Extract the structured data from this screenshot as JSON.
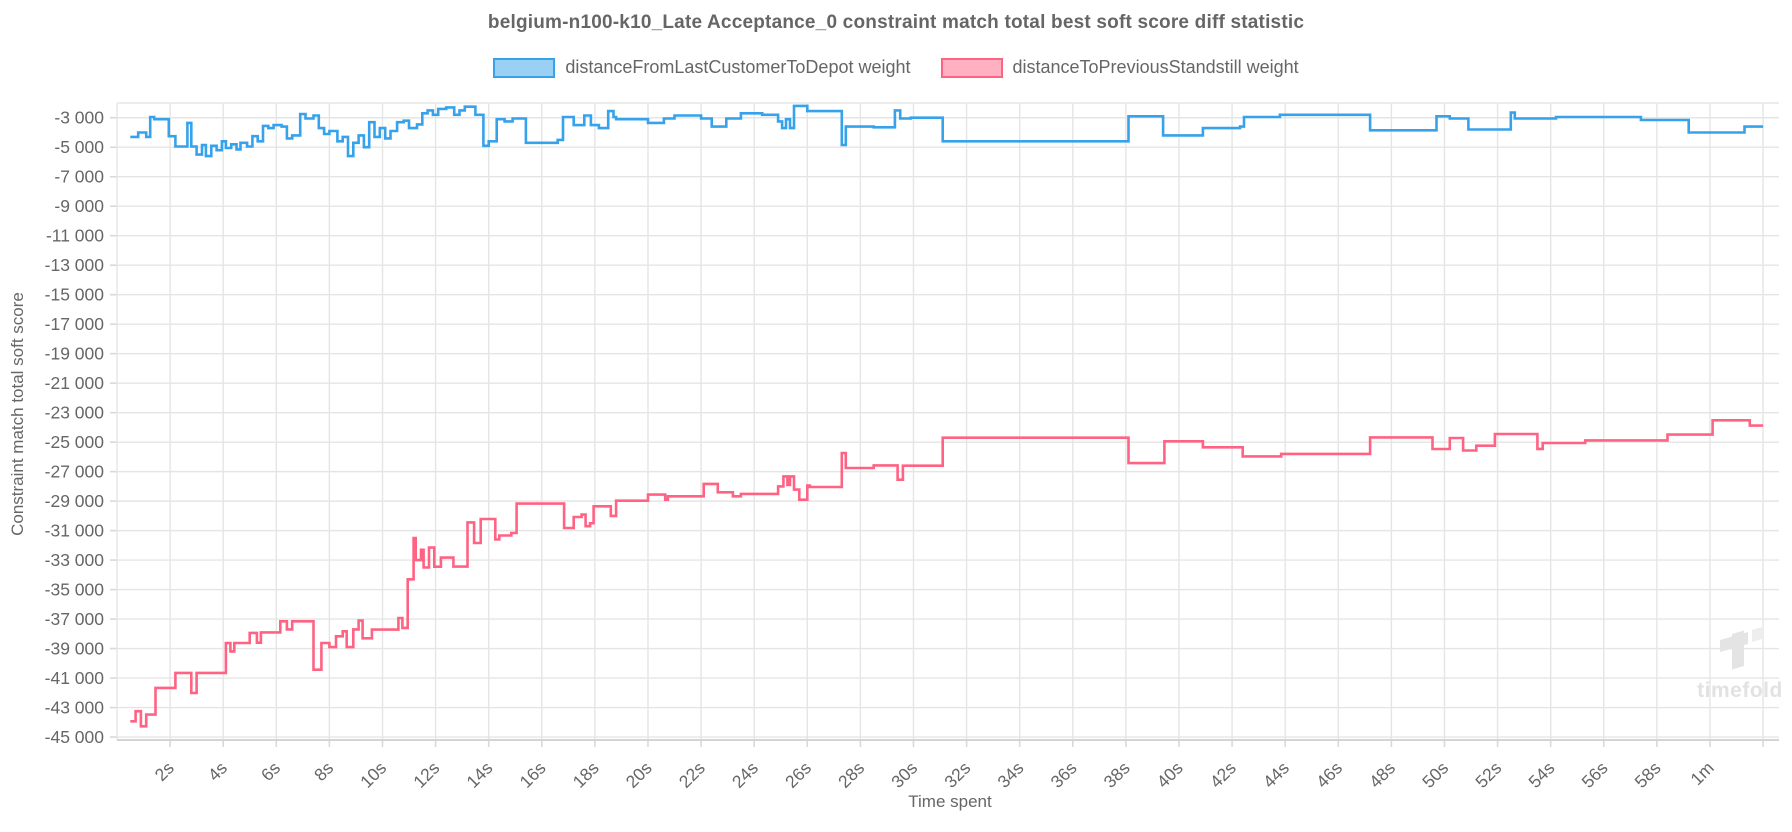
{
  "title": "belgium-n100-k10_Late Acceptance_0 constraint match total best soft score diff statistic",
  "watermark": {
    "text": "timefold"
  },
  "legend": [
    {
      "label": "distanceFromLastCustomerToDepot weight",
      "stroke": "#36A2EB",
      "fill": "#9BD0F5"
    },
    {
      "label": "distanceToPreviousStandstill weight",
      "stroke": "#FF6384",
      "fill": "#FFB1C1"
    }
  ],
  "chart_data": {
    "type": "line",
    "step": true,
    "title": "belgium-n100-k10_Late Acceptance_0 constraint match total best soft score diff statistic",
    "xlabel": "Time spent",
    "ylabel": "Constraint match total soft score",
    "xlim": [
      0,
      62.6
    ],
    "ylim": [
      -45200,
      -2000
    ],
    "grid": true,
    "legend_position": "top",
    "x_ticks": [
      {
        "t": 2,
        "label": "2s"
      },
      {
        "t": 4,
        "label": "4s"
      },
      {
        "t": 6,
        "label": "6s"
      },
      {
        "t": 8,
        "label": "8s"
      },
      {
        "t": 10,
        "label": "10s"
      },
      {
        "t": 12,
        "label": "12s"
      },
      {
        "t": 14,
        "label": "14s"
      },
      {
        "t": 16,
        "label": "16s"
      },
      {
        "t": 18,
        "label": "18s"
      },
      {
        "t": 20,
        "label": "20s"
      },
      {
        "t": 22,
        "label": "22s"
      },
      {
        "t": 24,
        "label": "24s"
      },
      {
        "t": 26,
        "label": "26s"
      },
      {
        "t": 28,
        "label": "28s"
      },
      {
        "t": 30,
        "label": "30s"
      },
      {
        "t": 32,
        "label": "32s"
      },
      {
        "t": 34,
        "label": "34s"
      },
      {
        "t": 36,
        "label": "36s"
      },
      {
        "t": 38,
        "label": "38s"
      },
      {
        "t": 40,
        "label": "40s"
      },
      {
        "t": 42,
        "label": "42s"
      },
      {
        "t": 44,
        "label": "44s"
      },
      {
        "t": 46,
        "label": "46s"
      },
      {
        "t": 48,
        "label": "48s"
      },
      {
        "t": 50,
        "label": "50s"
      },
      {
        "t": 52,
        "label": "52s"
      },
      {
        "t": 54,
        "label": "54s"
      },
      {
        "t": 56,
        "label": "56s"
      },
      {
        "t": 58,
        "label": "58s"
      },
      {
        "t": 60,
        "label": "1m"
      }
    ],
    "x_grid_extra": [
      62
    ],
    "y_ticks": [
      {
        "value": -3000,
        "label": "-3 000"
      },
      {
        "value": -5000,
        "label": "-5 000"
      },
      {
        "value": -7000,
        "label": "-7 000"
      },
      {
        "value": -9000,
        "label": "-9 000"
      },
      {
        "value": -11000,
        "label": "-11 000"
      },
      {
        "value": -13000,
        "label": "-13 000"
      },
      {
        "value": -15000,
        "label": "-15 000"
      },
      {
        "value": -17000,
        "label": "-17 000"
      },
      {
        "value": -19000,
        "label": "-19 000"
      },
      {
        "value": -21000,
        "label": "-21 000"
      },
      {
        "value": -23000,
        "label": "-23 000"
      },
      {
        "value": -25000,
        "label": "-25 000"
      },
      {
        "value": -27000,
        "label": "-27 000"
      },
      {
        "value": -29000,
        "label": "-29 000"
      },
      {
        "value": -31000,
        "label": "-31 000"
      },
      {
        "value": -33000,
        "label": "-33 000"
      },
      {
        "value": -35000,
        "label": "-35 000"
      },
      {
        "value": -37000,
        "label": "-37 000"
      },
      {
        "value": -39000,
        "label": "-39 000"
      },
      {
        "value": -41000,
        "label": "-41 000"
      },
      {
        "value": -43000,
        "label": "-43 000"
      },
      {
        "value": -45000,
        "label": "-45 000"
      }
    ],
    "series": [
      {
        "name": "distanceFromLastCustomerToDepot weight",
        "color": "#36A2EB",
        "points": [
          [
            0.5,
            -4300
          ],
          [
            0.8,
            -4000
          ],
          [
            1.1,
            -4300
          ],
          [
            1.25,
            -2950
          ],
          [
            1.4,
            -3100
          ],
          [
            1.95,
            -4250
          ],
          [
            2.2,
            -4950
          ],
          [
            2.65,
            -3350
          ],
          [
            2.8,
            -4950
          ],
          [
            3.0,
            -5500
          ],
          [
            3.2,
            -4850
          ],
          [
            3.35,
            -5600
          ],
          [
            3.55,
            -4900
          ],
          [
            3.75,
            -5200
          ],
          [
            3.95,
            -4600
          ],
          [
            4.1,
            -5050
          ],
          [
            4.3,
            -4800
          ],
          [
            4.5,
            -5150
          ],
          [
            4.65,
            -4700
          ],
          [
            4.9,
            -4950
          ],
          [
            5.1,
            -4250
          ],
          [
            5.3,
            -4600
          ],
          [
            5.5,
            -3550
          ],
          [
            5.7,
            -3700
          ],
          [
            5.9,
            -3500
          ],
          [
            6.2,
            -3600
          ],
          [
            6.4,
            -4400
          ],
          [
            6.6,
            -4200
          ],
          [
            6.9,
            -2750
          ],
          [
            7.1,
            -3050
          ],
          [
            7.4,
            -2850
          ],
          [
            7.6,
            -3700
          ],
          [
            7.8,
            -4100
          ],
          [
            8.0,
            -3900
          ],
          [
            8.3,
            -4600
          ],
          [
            8.5,
            -4300
          ],
          [
            8.7,
            -5600
          ],
          [
            8.9,
            -4700
          ],
          [
            9.1,
            -4200
          ],
          [
            9.3,
            -5000
          ],
          [
            9.5,
            -3300
          ],
          [
            9.7,
            -4300
          ],
          [
            9.9,
            -3700
          ],
          [
            10.1,
            -4400
          ],
          [
            10.3,
            -3900
          ],
          [
            10.55,
            -3300
          ],
          [
            10.8,
            -3200
          ],
          [
            11.0,
            -3700
          ],
          [
            11.3,
            -3450
          ],
          [
            11.5,
            -2700
          ],
          [
            11.7,
            -2500
          ],
          [
            11.9,
            -2800
          ],
          [
            12.1,
            -2400
          ],
          [
            12.4,
            -2300
          ],
          [
            12.7,
            -2800
          ],
          [
            12.9,
            -2500
          ],
          [
            13.1,
            -2250
          ],
          [
            13.5,
            -2800
          ],
          [
            13.8,
            -4900
          ],
          [
            14.0,
            -4600
          ],
          [
            14.3,
            -3100
          ],
          [
            14.6,
            -3250
          ],
          [
            14.9,
            -3050
          ],
          [
            15.4,
            -4700
          ],
          [
            16.6,
            -4500
          ],
          [
            16.8,
            -2950
          ],
          [
            17.2,
            -3500
          ],
          [
            17.6,
            -2850
          ],
          [
            17.85,
            -3500
          ],
          [
            18.15,
            -3700
          ],
          [
            18.5,
            -2550
          ],
          [
            18.7,
            -2950
          ],
          [
            18.8,
            -3100
          ],
          [
            20.0,
            -3350
          ],
          [
            20.6,
            -3050
          ],
          [
            21.0,
            -2850
          ],
          [
            22.0,
            -3050
          ],
          [
            22.4,
            -3600
          ],
          [
            22.95,
            -3050
          ],
          [
            23.5,
            -2700
          ],
          [
            24.3,
            -2800
          ],
          [
            24.9,
            -3250
          ],
          [
            25.05,
            -3700
          ],
          [
            25.2,
            -3100
          ],
          [
            25.35,
            -3700
          ],
          [
            25.5,
            -2200
          ],
          [
            26.0,
            -2550
          ],
          [
            27.3,
            -4850
          ],
          [
            27.45,
            -3600
          ],
          [
            28.5,
            -3650
          ],
          [
            29.3,
            -2500
          ],
          [
            29.5,
            -3050
          ],
          [
            29.9,
            -3000
          ],
          [
            31.1,
            -4600
          ],
          [
            38.1,
            -2900
          ],
          [
            39.4,
            -4200
          ],
          [
            40.9,
            -3700
          ],
          [
            42.3,
            -3600
          ],
          [
            42.45,
            -2950
          ],
          [
            43.8,
            -2800
          ],
          [
            47.2,
            -3850
          ],
          [
            49.7,
            -2900
          ],
          [
            50.2,
            -3050
          ],
          [
            50.9,
            -3800
          ],
          [
            52.5,
            -2650
          ],
          [
            52.65,
            -3050
          ],
          [
            54.2,
            -2950
          ],
          [
            57.4,
            -3150
          ],
          [
            59.2,
            -4000
          ],
          [
            61.3,
            -3600
          ],
          [
            62.0,
            -3600
          ]
        ]
      },
      {
        "name": "distanceToPreviousStandstill weight",
        "color": "#FF6384",
        "points": [
          [
            0.5,
            -43930
          ],
          [
            0.7,
            -43250
          ],
          [
            0.9,
            -44270
          ],
          [
            1.1,
            -43480
          ],
          [
            1.45,
            -41670
          ],
          [
            2.2,
            -40650
          ],
          [
            2.8,
            -42010
          ],
          [
            3.0,
            -40650
          ],
          [
            4.1,
            -38620
          ],
          [
            4.27,
            -39190
          ],
          [
            4.42,
            -38620
          ],
          [
            5.0,
            -37940
          ],
          [
            5.27,
            -38600
          ],
          [
            5.42,
            -37900
          ],
          [
            6.15,
            -37150
          ],
          [
            6.4,
            -37700
          ],
          [
            6.6,
            -37150
          ],
          [
            7.4,
            -40430
          ],
          [
            7.7,
            -38620
          ],
          [
            8.0,
            -38900
          ],
          [
            8.25,
            -38170
          ],
          [
            8.5,
            -37830
          ],
          [
            8.65,
            -38900
          ],
          [
            8.9,
            -37700
          ],
          [
            9.1,
            -37100
          ],
          [
            9.25,
            -38300
          ],
          [
            9.6,
            -37715
          ],
          [
            10.6,
            -36925
          ],
          [
            10.75,
            -37600
          ],
          [
            10.95,
            -34300
          ],
          [
            11.17,
            -31500
          ],
          [
            11.25,
            -33000
          ],
          [
            11.45,
            -32300
          ],
          [
            11.55,
            -33500
          ],
          [
            11.75,
            -32150
          ],
          [
            11.95,
            -33450
          ],
          [
            12.2,
            -32830
          ],
          [
            12.67,
            -33440
          ],
          [
            13.2,
            -30440
          ],
          [
            13.45,
            -31840
          ],
          [
            13.7,
            -30215
          ],
          [
            14.25,
            -31600
          ],
          [
            14.4,
            -31330
          ],
          [
            14.85,
            -31160
          ],
          [
            15.05,
            -29170
          ],
          [
            16.84,
            -30820
          ],
          [
            17.2,
            -30075
          ],
          [
            17.5,
            -29915
          ],
          [
            17.65,
            -30700
          ],
          [
            17.82,
            -30500
          ],
          [
            17.95,
            -29350
          ],
          [
            18.6,
            -30000
          ],
          [
            18.8,
            -28970
          ],
          [
            20.0,
            -28560
          ],
          [
            20.65,
            -28900
          ],
          [
            20.75,
            -28675
          ],
          [
            22.1,
            -27835
          ],
          [
            22.63,
            -28400
          ],
          [
            23.2,
            -28675
          ],
          [
            23.5,
            -28510
          ],
          [
            24.9,
            -28000
          ],
          [
            25.1,
            -27320
          ],
          [
            25.25,
            -27900
          ],
          [
            25.35,
            -27320
          ],
          [
            25.5,
            -28220
          ],
          [
            25.7,
            -28900
          ],
          [
            26.0,
            -27950
          ],
          [
            26.1,
            -28040
          ],
          [
            27.3,
            -25735
          ],
          [
            27.45,
            -26755
          ],
          [
            28.5,
            -26575
          ],
          [
            29.4,
            -27545
          ],
          [
            29.6,
            -26600
          ],
          [
            31.1,
            -24700
          ],
          [
            38.1,
            -26420
          ],
          [
            39.45,
            -24945
          ],
          [
            40.9,
            -25350
          ],
          [
            42.4,
            -25965
          ],
          [
            43.85,
            -25800
          ],
          [
            47.2,
            -24675
          ],
          [
            49.55,
            -25465
          ],
          [
            50.2,
            -24720
          ],
          [
            50.7,
            -25570
          ],
          [
            51.2,
            -25240
          ],
          [
            51.9,
            -24445
          ],
          [
            53.5,
            -25460
          ],
          [
            53.7,
            -25060
          ],
          [
            55.3,
            -24880
          ],
          [
            58.4,
            -24490
          ],
          [
            60.1,
            -23520
          ],
          [
            61.5,
            -23880
          ],
          [
            62.0,
            -23880
          ]
        ]
      }
    ]
  }
}
